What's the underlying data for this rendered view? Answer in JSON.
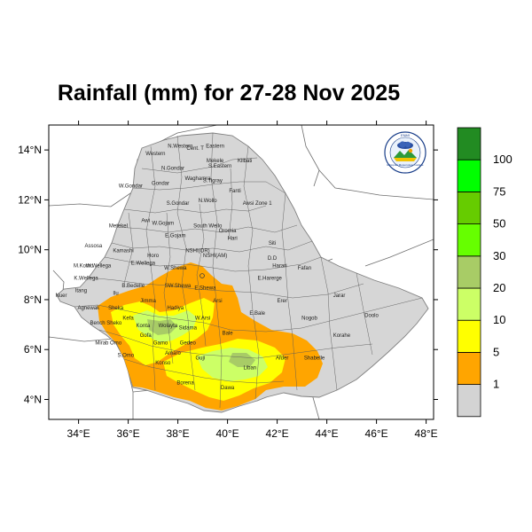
{
  "title": "Rainfall (mm) for 27-28 Nov 2025",
  "map": {
    "lon_ticks": [
      "34°E",
      "36°E",
      "38°E",
      "40°E",
      "42°E",
      "44°E",
      "46°E",
      "48°E"
    ],
    "lat_ticks": [
      "4°N",
      "6°N",
      "8°N",
      "10°N",
      "12°N",
      "14°N"
    ],
    "lon_range": [
      32.8,
      48.3
    ],
    "lat_range": [
      3.2,
      15.0
    ],
    "lon_values": [
      34,
      36,
      38,
      40,
      42,
      44,
      46,
      48
    ],
    "lat_values": [
      4,
      6,
      8,
      10,
      12,
      14
    ],
    "region_labels": [
      {
        "name": "Western",
        "lon": 37.1,
        "lat": 13.8
      },
      {
        "name": "N.Western",
        "lon": 38.1,
        "lat": 14.1
      },
      {
        "name": "Cent. T",
        "lon": 38.7,
        "lat": 14.0
      },
      {
        "name": "Eastern",
        "lon": 39.5,
        "lat": 14.1
      },
      {
        "name": "Mekele",
        "lon": 39.5,
        "lat": 13.5
      },
      {
        "name": "S.Eastern",
        "lon": 39.7,
        "lat": 13.3
      },
      {
        "name": "Kilbati",
        "lon": 40.7,
        "lat": 13.5
      },
      {
        "name": "N.Gondar",
        "lon": 37.8,
        "lat": 13.2
      },
      {
        "name": "Waghamra",
        "lon": 38.8,
        "lat": 12.8
      },
      {
        "name": "S.Tigray",
        "lon": 39.4,
        "lat": 12.7
      },
      {
        "name": "W.Gondar",
        "lon": 36.1,
        "lat": 12.5
      },
      {
        "name": "Gondar",
        "lon": 37.3,
        "lat": 12.6
      },
      {
        "name": "Fanti",
        "lon": 40.3,
        "lat": 12.3
      },
      {
        "name": "N.Wollo",
        "lon": 39.2,
        "lat": 11.9
      },
      {
        "name": "S.Gondar",
        "lon": 38.0,
        "lat": 11.8
      },
      {
        "name": "Awsi Zone 1",
        "lon": 41.2,
        "lat": 11.8
      },
      {
        "name": "Metekel",
        "lon": 35.6,
        "lat": 10.9
      },
      {
        "name": "Awi",
        "lon": 36.7,
        "lat": 11.1
      },
      {
        "name": "W.Gojam",
        "lon": 37.4,
        "lat": 11.0
      },
      {
        "name": "South Wello",
        "lon": 39.2,
        "lat": 10.9
      },
      {
        "name": "E.Gojam",
        "lon": 37.9,
        "lat": 10.5
      },
      {
        "name": "Oromia",
        "lon": 40.0,
        "lat": 10.7
      },
      {
        "name": "Hari",
        "lon": 40.2,
        "lat": 10.4
      },
      {
        "name": "Siti",
        "lon": 41.8,
        "lat": 10.2
      },
      {
        "name": "Assosa",
        "lon": 34.6,
        "lat": 10.1
      },
      {
        "name": "Kamashi",
        "lon": 35.8,
        "lat": 9.9
      },
      {
        "name": "Horo",
        "lon": 37.0,
        "lat": 9.7
      },
      {
        "name": "NSHI(OR)",
        "lon": 38.8,
        "lat": 9.9
      },
      {
        "name": "NSHI(AM)",
        "lon": 39.5,
        "lat": 9.7
      },
      {
        "name": "D.D",
        "lon": 41.8,
        "lat": 9.6
      },
      {
        "name": "Harari",
        "lon": 42.1,
        "lat": 9.3
      },
      {
        "name": "Fafan",
        "lon": 43.1,
        "lat": 9.2
      },
      {
        "name": "M.Komo",
        "lon": 34.2,
        "lat": 9.3
      },
      {
        "name": "W.Wellega",
        "lon": 34.8,
        "lat": 9.3
      },
      {
        "name": "E.Wellega",
        "lon": 36.6,
        "lat": 9.4
      },
      {
        "name": "W.Shewa",
        "lon": 37.9,
        "lat": 9.2
      },
      {
        "name": "K.Wellega",
        "lon": 34.3,
        "lat": 8.8
      },
      {
        "name": "E.Harerge",
        "lon": 41.7,
        "lat": 8.8
      },
      {
        "name": "B.Bedelle",
        "lon": 36.2,
        "lat": 8.5
      },
      {
        "name": "SW.Shewa",
        "lon": 38.0,
        "lat": 8.5
      },
      {
        "name": "E.Shewa",
        "lon": 39.1,
        "lat": 8.4
      },
      {
        "name": "Itang",
        "lon": 34.1,
        "lat": 8.3
      },
      {
        "name": "Ilu",
        "lon": 35.5,
        "lat": 8.2
      },
      {
        "name": "Jarar",
        "lon": 44.5,
        "lat": 8.1
      },
      {
        "name": "Nuer",
        "lon": 33.3,
        "lat": 8.1
      },
      {
        "name": "Jimma",
        "lon": 36.8,
        "lat": 7.9
      },
      {
        "name": "Arsi",
        "lon": 39.6,
        "lat": 7.9
      },
      {
        "name": "Erer",
        "lon": 42.2,
        "lat": 7.9
      },
      {
        "name": "Agnewak",
        "lon": 34.4,
        "lat": 7.6
      },
      {
        "name": "Sheka",
        "lon": 35.5,
        "lat": 7.6
      },
      {
        "name": "Hadiya",
        "lon": 37.9,
        "lat": 7.6
      },
      {
        "name": "Kefa",
        "lon": 36.0,
        "lat": 7.2
      },
      {
        "name": "W.Arsi",
        "lon": 39.0,
        "lat": 7.2
      },
      {
        "name": "E.Bale",
        "lon": 41.2,
        "lat": 7.4
      },
      {
        "name": "Nogob",
        "lon": 43.3,
        "lat": 7.2
      },
      {
        "name": "Doolo",
        "lon": 45.8,
        "lat": 7.3
      },
      {
        "name": "Bench Sheko",
        "lon": 35.1,
        "lat": 7.0
      },
      {
        "name": "Konta",
        "lon": 36.6,
        "lat": 6.9
      },
      {
        "name": "Wolayta",
        "lon": 37.6,
        "lat": 6.9
      },
      {
        "name": "Sidama",
        "lon": 38.4,
        "lat": 6.8
      },
      {
        "name": "Bale",
        "lon": 40.0,
        "lat": 6.6
      },
      {
        "name": "Korahe",
        "lon": 44.6,
        "lat": 6.5
      },
      {
        "name": "Mirab Omo",
        "lon": 35.2,
        "lat": 6.2
      },
      {
        "name": "Gofa",
        "lon": 36.7,
        "lat": 6.5
      },
      {
        "name": "Gamo",
        "lon": 37.3,
        "lat": 6.2
      },
      {
        "name": "Gedeo",
        "lon": 38.4,
        "lat": 6.2
      },
      {
        "name": "S.Omo",
        "lon": 35.9,
        "lat": 5.7
      },
      {
        "name": "Amaro",
        "lon": 37.8,
        "lat": 5.8
      },
      {
        "name": "Guji",
        "lon": 38.9,
        "lat": 5.6
      },
      {
        "name": "Shabelle",
        "lon": 43.5,
        "lat": 5.6
      },
      {
        "name": "Konso",
        "lon": 37.4,
        "lat": 5.4
      },
      {
        "name": "Liban",
        "lon": 40.9,
        "lat": 5.2
      },
      {
        "name": "Afder",
        "lon": 42.2,
        "lat": 5.6
      },
      {
        "name": "Borena",
        "lon": 38.3,
        "lat": 4.6
      },
      {
        "name": "Dawa",
        "lon": 40.0,
        "lat": 4.4
      }
    ]
  },
  "legend": {
    "labels": [
      "1",
      "5",
      "10",
      "20",
      "30",
      "50",
      "75",
      "100"
    ],
    "colors": [
      "#d3d3d3",
      "#ffa500",
      "#ffff00",
      "#ccff66",
      "#a8cc66",
      "#66ff00",
      "#66cc00",
      "#00ff00",
      "#228b22"
    ]
  },
  "logo": {
    "arc_text": "ENMI",
    "caption": "Ethiopian Meteorology Institute"
  }
}
